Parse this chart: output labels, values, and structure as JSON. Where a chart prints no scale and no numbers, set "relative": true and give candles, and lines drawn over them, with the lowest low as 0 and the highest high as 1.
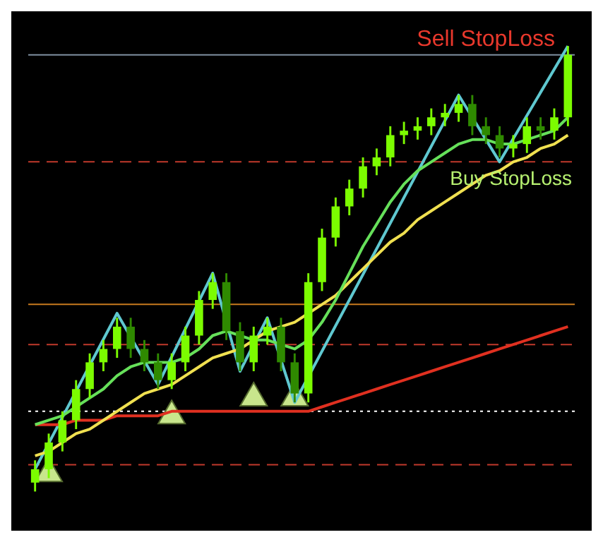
{
  "chart_data": {
    "type": "candlestick",
    "relative": true,
    "categories": [
      null,
      null,
      null,
      null,
      null,
      null,
      null,
      null,
      null,
      null,
      null,
      null,
      null,
      null,
      null,
      null,
      null,
      null,
      null,
      null,
      null,
      null,
      null,
      null,
      null,
      null,
      null,
      null,
      null,
      null,
      null,
      null,
      null,
      null,
      null,
      null,
      null,
      null,
      null,
      null
    ],
    "colors": [
      "#7cfc00",
      "#7cfc00",
      "#7cfc00",
      "#7cfc00",
      "#7cfc00",
      "#7cfc00",
      "#7cfc00",
      "#2f8a00",
      "#2f8a00",
      "#2f8a00",
      "#7cfc00",
      "#7cfc00",
      "#7cfc00",
      "#7cfc00",
      "#2f8a00",
      "#2f8a00",
      "#7cfc00",
      "#7cfc00",
      "#2f8a00",
      "#2f8a00",
      "#7cfc00",
      "#7cfc00",
      "#7cfc00",
      "#7cfc00",
      "#7cfc00",
      "#7cfc00",
      "#7cfc00",
      "#7cfc00",
      "#7cfc00",
      "#7cfc00",
      "#7cfc00",
      "#7cfc00",
      "#2f8a00",
      "#2f8a00",
      "#2f8a00",
      "#7cfc00",
      "#7cfc00",
      "#2f8a00",
      "#7cfc00",
      "#7cfc00"
    ],
    "ohlc": [
      [
        0.02,
        0.07,
        0,
        0.05
      ],
      [
        0.05,
        0.13,
        0.03,
        0.11
      ],
      [
        0.11,
        0.18,
        0.09,
        0.16
      ],
      [
        0.16,
        0.25,
        0.14,
        0.23
      ],
      [
        0.23,
        0.31,
        0.21,
        0.29
      ],
      [
        0.29,
        0.34,
        0.27,
        0.32
      ],
      [
        0.32,
        0.39,
        0.3,
        0.37
      ],
      [
        0.37,
        0.39,
        0.3,
        0.32
      ],
      [
        0.32,
        0.34,
        0.27,
        0.29
      ],
      [
        0.29,
        0.31,
        0.23,
        0.25
      ],
      [
        0.25,
        0.31,
        0.23,
        0.29
      ],
      [
        0.29,
        0.37,
        0.27,
        0.35
      ],
      [
        0.35,
        0.45,
        0.33,
        0.43
      ],
      [
        0.43,
        0.49,
        0.41,
        0.47
      ],
      [
        0.47,
        0.49,
        0.34,
        0.36
      ],
      [
        0.36,
        0.38,
        0.27,
        0.29
      ],
      [
        0.29,
        0.37,
        0.27,
        0.35
      ],
      [
        0.35,
        0.39,
        0.33,
        0.37
      ],
      [
        0.37,
        0.39,
        0.27,
        0.29
      ],
      [
        0.29,
        0.31,
        0.2,
        0.22
      ],
      [
        0.22,
        0.49,
        0.2,
        0.47
      ],
      [
        0.47,
        0.59,
        0.45,
        0.57
      ],
      [
        0.57,
        0.66,
        0.55,
        0.64
      ],
      [
        0.64,
        0.7,
        0.62,
        0.68
      ],
      [
        0.68,
        0.75,
        0.66,
        0.73
      ],
      [
        0.73,
        0.77,
        0.71,
        0.75
      ],
      [
        0.75,
        0.82,
        0.73,
        0.8
      ],
      [
        0.8,
        0.83,
        0.78,
        0.81
      ],
      [
        0.81,
        0.84,
        0.79,
        0.82
      ],
      [
        0.82,
        0.86,
        0.8,
        0.84
      ],
      [
        0.84,
        0.87,
        0.82,
        0.85
      ],
      [
        0.85,
        0.89,
        0.83,
        0.87
      ],
      [
        0.87,
        0.89,
        0.8,
        0.82
      ],
      [
        0.82,
        0.84,
        0.78,
        0.8
      ],
      [
        0.8,
        0.82,
        0.75,
        0.77
      ],
      [
        0.77,
        0.8,
        0.75,
        0.78
      ],
      [
        0.78,
        0.84,
        0.76,
        0.82
      ],
      [
        0.82,
        0.84,
        0.79,
        0.81
      ],
      [
        0.81,
        0.86,
        0.79,
        0.84
      ],
      [
        0.84,
        1.0,
        0.82,
        0.98
      ]
    ],
    "series": [
      {
        "type": "line",
        "color": "#66e05a",
        "values": [
          0.15,
          0.16,
          0.17,
          0.19,
          0.21,
          0.23,
          0.26,
          0.28,
          0.29,
          0.29,
          0.29,
          0.3,
          0.32,
          0.35,
          0.36,
          0.35,
          0.34,
          0.34,
          0.33,
          0.32,
          0.34,
          0.38,
          0.43,
          0.49,
          0.55,
          0.6,
          0.65,
          0.69,
          0.72,
          0.74,
          0.76,
          0.78,
          0.79,
          0.79,
          0.78,
          0.78,
          0.79,
          0.8,
          0.81,
          0.84
        ]
      },
      {
        "type": "line",
        "color": "#f0e050",
        "values": [
          0.08,
          0.09,
          0.11,
          0.13,
          0.14,
          0.16,
          0.18,
          0.2,
          0.22,
          0.23,
          0.24,
          0.26,
          0.28,
          0.3,
          0.31,
          0.32,
          0.34,
          0.36,
          0.37,
          0.38,
          0.4,
          0.42,
          0.44,
          0.47,
          0.5,
          0.53,
          0.56,
          0.58,
          0.61,
          0.63,
          0.65,
          0.67,
          0.69,
          0.71,
          0.72,
          0.74,
          0.75,
          0.77,
          0.78,
          0.8
        ]
      },
      {
        "type": "line",
        "color": "#e03020",
        "values": [
          0.15,
          0.15,
          0.15,
          0.16,
          0.16,
          0.16,
          0.17,
          0.17,
          0.17,
          0.17,
          0.18,
          0.18,
          0.18,
          0.18,
          0.18,
          0.18,
          0.18,
          0.18,
          0.18,
          0.18,
          0.18,
          0.19,
          0.2,
          0.21,
          0.22,
          0.23,
          0.24,
          0.25,
          0.26,
          0.27,
          0.28,
          0.29,
          0.3,
          0.31,
          0.32,
          0.33,
          0.34,
          0.35,
          0.36,
          0.37
        ]
      },
      {
        "type": "line",
        "color": "#5fc8d0",
        "values": [
          0.05,
          null,
          null,
          null,
          null,
          null,
          0.4,
          null,
          null,
          0.24,
          null,
          null,
          null,
          0.49,
          null,
          0.27,
          null,
          0.39,
          null,
          0.2,
          null,
          null,
          null,
          null,
          null,
          null,
          null,
          null,
          null,
          null,
          null,
          0.89,
          null,
          null,
          0.74,
          null,
          null,
          null,
          null,
          1.0
        ]
      },
      {
        "type": "scatter",
        "marker": "triangle",
        "color": "#c8e68c",
        "values": [
          null,
          0.04,
          null,
          null,
          null,
          null,
          null,
          null,
          null,
          null,
          0.17,
          null,
          null,
          null,
          null,
          null,
          0.21,
          null,
          null,
          0.21,
          null,
          null,
          null,
          null,
          null,
          null,
          null,
          null,
          null,
          null,
          null,
          null,
          null,
          null,
          null,
          null,
          null,
          null,
          null,
          null
        ]
      }
    ],
    "ref_lines": [
      {
        "axis": "y",
        "value": 0.98,
        "color": "#7f8fa0",
        "line_style": "solid"
      },
      {
        "axis": "y",
        "value": 0.42,
        "color": "#c87a1e",
        "line_style": "solid"
      },
      {
        "axis": "y",
        "value": 0.33,
        "color": "#c0392b",
        "line_style": "dashed"
      },
      {
        "axis": "y",
        "value": 0.06,
        "color": "#c0392b",
        "line_style": "dashed"
      },
      {
        "axis": "y",
        "value": 0.74,
        "color": "#c0392b",
        "line_style": "dashed"
      },
      {
        "axis": "y",
        "value": 0.18,
        "color": "#ffffff",
        "line_style": "dotted"
      }
    ],
    "annotations": [
      "Sell StopLoss",
      "Buy StopLoss"
    ]
  }
}
